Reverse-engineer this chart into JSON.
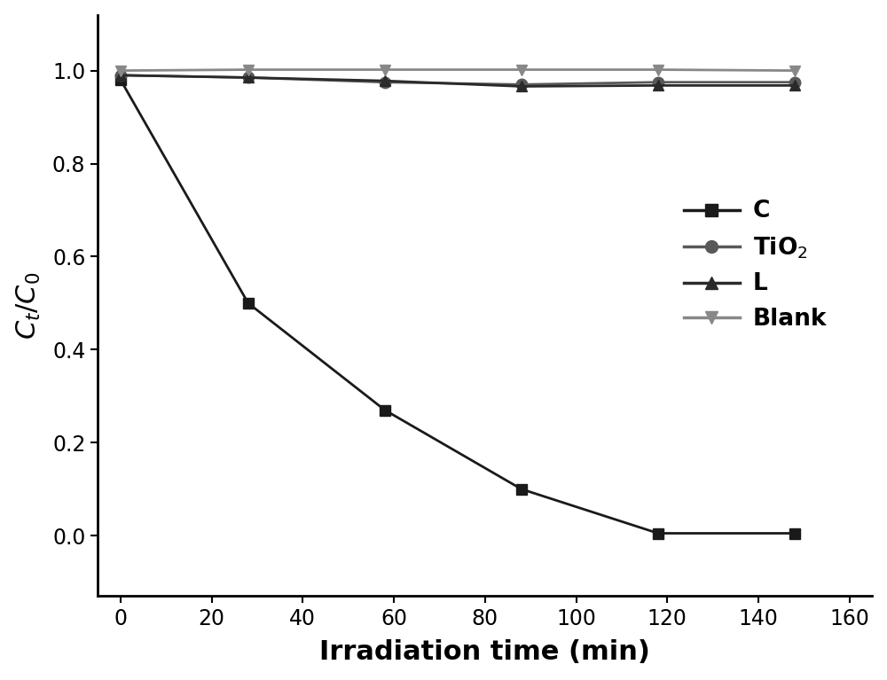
{
  "x_C": [
    0,
    28,
    58,
    88,
    118,
    148
  ],
  "y_C": [
    0.98,
    0.5,
    0.27,
    0.1,
    0.005,
    0.005
  ],
  "x_TiO2": [
    0,
    28,
    58,
    88,
    118,
    148
  ],
  "y_TiO2": [
    0.99,
    0.985,
    0.975,
    0.97,
    0.975,
    0.975
  ],
  "x_L": [
    0,
    28,
    58,
    88,
    118,
    148
  ],
  "y_L": [
    0.99,
    0.985,
    0.978,
    0.966,
    0.968,
    0.968
  ],
  "x_Blank": [
    0,
    28,
    58,
    88,
    118,
    148
  ],
  "y_Blank": [
    1.0,
    1.002,
    1.002,
    1.002,
    1.002,
    1.0
  ],
  "color_C": "#1a1a1a",
  "color_TiO2": "#595959",
  "color_L": "#2a2a2a",
  "color_Blank": "#888888",
  "xlabel": "Irradiation time (min)",
  "ylabel": "$C_t/C_0$",
  "xlim": [
    -5,
    165
  ],
  "ylim": [
    -0.13,
    1.12
  ],
  "xticks": [
    0,
    20,
    40,
    60,
    80,
    100,
    120,
    140,
    160
  ],
  "yticks": [
    0.0,
    0.2,
    0.4,
    0.6,
    0.8,
    1.0
  ],
  "legend_labels": [
    "C",
    "TiO$_2$",
    "L",
    "Blank"
  ],
  "markersize": 9,
  "linewidth": 2.0
}
